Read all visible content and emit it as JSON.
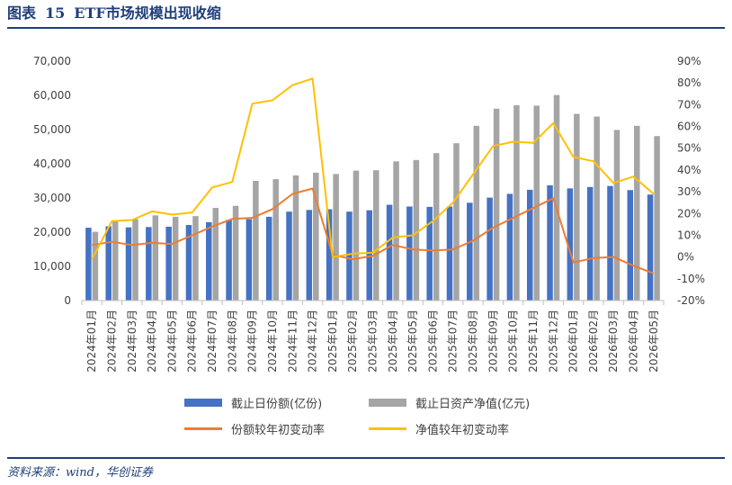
{
  "figure": {
    "label": "图表",
    "number": "15",
    "title": "ETF市场规模出现收缩",
    "source": "资料来源：wind，华创证券"
  },
  "colors": {
    "title": "#1f3f7a",
    "bar_share": "#4472c4",
    "bar_nav": "#a5a5a5",
    "line_share_change": "#ed7d31",
    "line_nav_change": "#ffc000"
  },
  "chart_data": {
    "type": "bar",
    "categories": [
      "2024年01月",
      "2024年02月",
      "2024年03月",
      "2024年04月",
      "2024年05月",
      "2024年06月",
      "2024年07月",
      "2024年08月",
      "2024年09月",
      "2024年10月",
      "2024年11月",
      "2024年12月",
      "2025年01月",
      "2025年02月",
      "2025年03月",
      "2025年04月",
      "2025年05月",
      "2025年06月",
      "2025年07月",
      "2025年08月",
      "2025年09月",
      "2025年10月",
      "2025年11月",
      "2025年12月",
      "2026年01月",
      "2026年02月",
      "2026年03月",
      "2026年04月",
      "2026年05月"
    ],
    "left_axis": {
      "min": 0,
      "max": 70000,
      "ticks": [
        0,
        10000,
        20000,
        30000,
        40000,
        50000,
        60000,
        70000
      ],
      "tick_labels": [
        "0",
        "10,000",
        "20,000",
        "30,000",
        "40,000",
        "50,000",
        "60,000",
        "70,000"
      ]
    },
    "right_axis": {
      "min": -20,
      "max": 90,
      "ticks": [
        -20,
        -10,
        0,
        10,
        20,
        30,
        40,
        50,
        60,
        70,
        80,
        90
      ],
      "tick_labels": [
        "-20%",
        "-10%",
        "0%",
        "10%",
        "20%",
        "30%",
        "40%",
        "50%",
        "60%",
        "70%",
        "80%",
        "90%"
      ]
    },
    "grid": false,
    "legend_position": "bottom",
    "series": [
      {
        "name": "截止日份额(亿份)",
        "kind": "bar",
        "axis": "left",
        "values": [
          21300,
          21700,
          21400,
          21500,
          21600,
          22100,
          22900,
          23600,
          23800,
          24500,
          26000,
          26500,
          26700,
          26000,
          26400,
          28000,
          27500,
          27400,
          27500,
          28600,
          30100,
          31200,
          32400,
          33700,
          32800,
          33200,
          33500,
          32300,
          31000
        ]
      },
      {
        "name": "截止日资产净值(亿元)",
        "kind": "bar",
        "axis": "left",
        "values": [
          20100,
          23300,
          23800,
          24900,
          24500,
          24700,
          27100,
          27700,
          35000,
          35500,
          36600,
          37400,
          37000,
          38000,
          38100,
          40700,
          41100,
          43100,
          46000,
          51100,
          56100,
          57100,
          57000,
          60100,
          54600,
          53800,
          49900,
          51100,
          48100
        ]
      },
      {
        "name": "份额较年初变动率",
        "kind": "line",
        "axis": "right",
        "values": [
          5.5,
          7,
          5.5,
          6.5,
          6,
          10,
          14,
          17.5,
          18,
          22,
          29,
          31.5,
          1,
          -1,
          0.5,
          5.5,
          3.5,
          3,
          3.5,
          7.5,
          13.5,
          18,
          22.5,
          27,
          -2.5,
          -0.5,
          0,
          -4,
          -7.5
        ]
      },
      {
        "name": "净值较年初变动率",
        "kind": "line",
        "axis": "right",
        "values": [
          -1,
          16.5,
          17,
          21,
          19.5,
          20.5,
          32,
          34.5,
          70.5,
          72,
          79,
          82,
          0,
          1.5,
          2,
          9,
          10,
          16.5,
          25,
          38,
          51,
          53,
          52.5,
          61.5,
          46,
          44,
          34,
          37,
          29
        ]
      }
    ]
  }
}
